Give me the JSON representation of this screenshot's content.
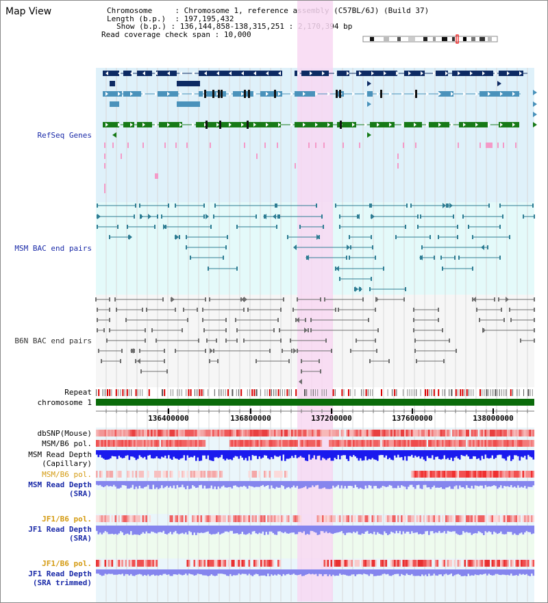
{
  "page": {
    "title": "Map View",
    "info": {
      "chromosome_label": "Chromosome",
      "chromosome_value": "Chromosome 1, reference assembly (C57BL/6J) (Build 37)",
      "length_label": "Length (b.p.)",
      "length_value": "197,195,432",
      "show_label": "Show (b.p.)",
      "show_value": "136,144,858-138,315,251 : 2,170,394 bp",
      "span_label": "Read coverage check span",
      "span_value": "10,000"
    }
  },
  "tracks": {
    "refseq": "RefSeq Genes",
    "msm_bac": "MSM BAC end pairs",
    "b6n_bac": "B6N BAC end pairs",
    "repeat": "Repeat",
    "chromosome": "chromosome 1",
    "dbsnp": "dbSNP(Mouse)",
    "msm_b6_pol_1": "MSM/B6 pol.",
    "msm_depth_cap_1": "MSM Read Depth",
    "msm_depth_cap_2": "(Capillary)",
    "msm_b6_pol_2": "MSM/B6 pol.",
    "msm_depth_sra_1": "MSM Read Depth",
    "msm_depth_sra_2": "(SRA)",
    "jf1_b6_pol_1": "JF1/B6 pol.",
    "jf1_depth_sra_1": "JF1 Read Depth",
    "jf1_depth_sra_2": "(SRA)",
    "jf1_b6_pol_2": "JF1/B6 pol.",
    "jf1_depth_trim_1": "JF1 Read Depth",
    "jf1_depth_trim_2": "(SRA trimmed)"
  },
  "ruler": {
    "ticks": [
      "136400000",
      "136800000",
      "137200000",
      "137600000",
      "138000000"
    ]
  },
  "colors": {
    "refseq_bg": "#dff1fa",
    "msm_bac_bg": "#e4fafa",
    "b6n_bac_bg": "#f6f6f6",
    "highlight": "#f8d8f2",
    "gene_dark": "#0d2a63",
    "gene_mid": "#4a92bb",
    "gene_green": "#177a17",
    "bac_line": "#2d7c93",
    "b6n_line": "#6d6d6d",
    "chrom_green": "#0a6b0a",
    "depth_blue": "#1a1aee",
    "depth_sra": "#8585ee",
    "label_blue": "#1a2aa8",
    "label_orange": "#d49a10"
  }
}
